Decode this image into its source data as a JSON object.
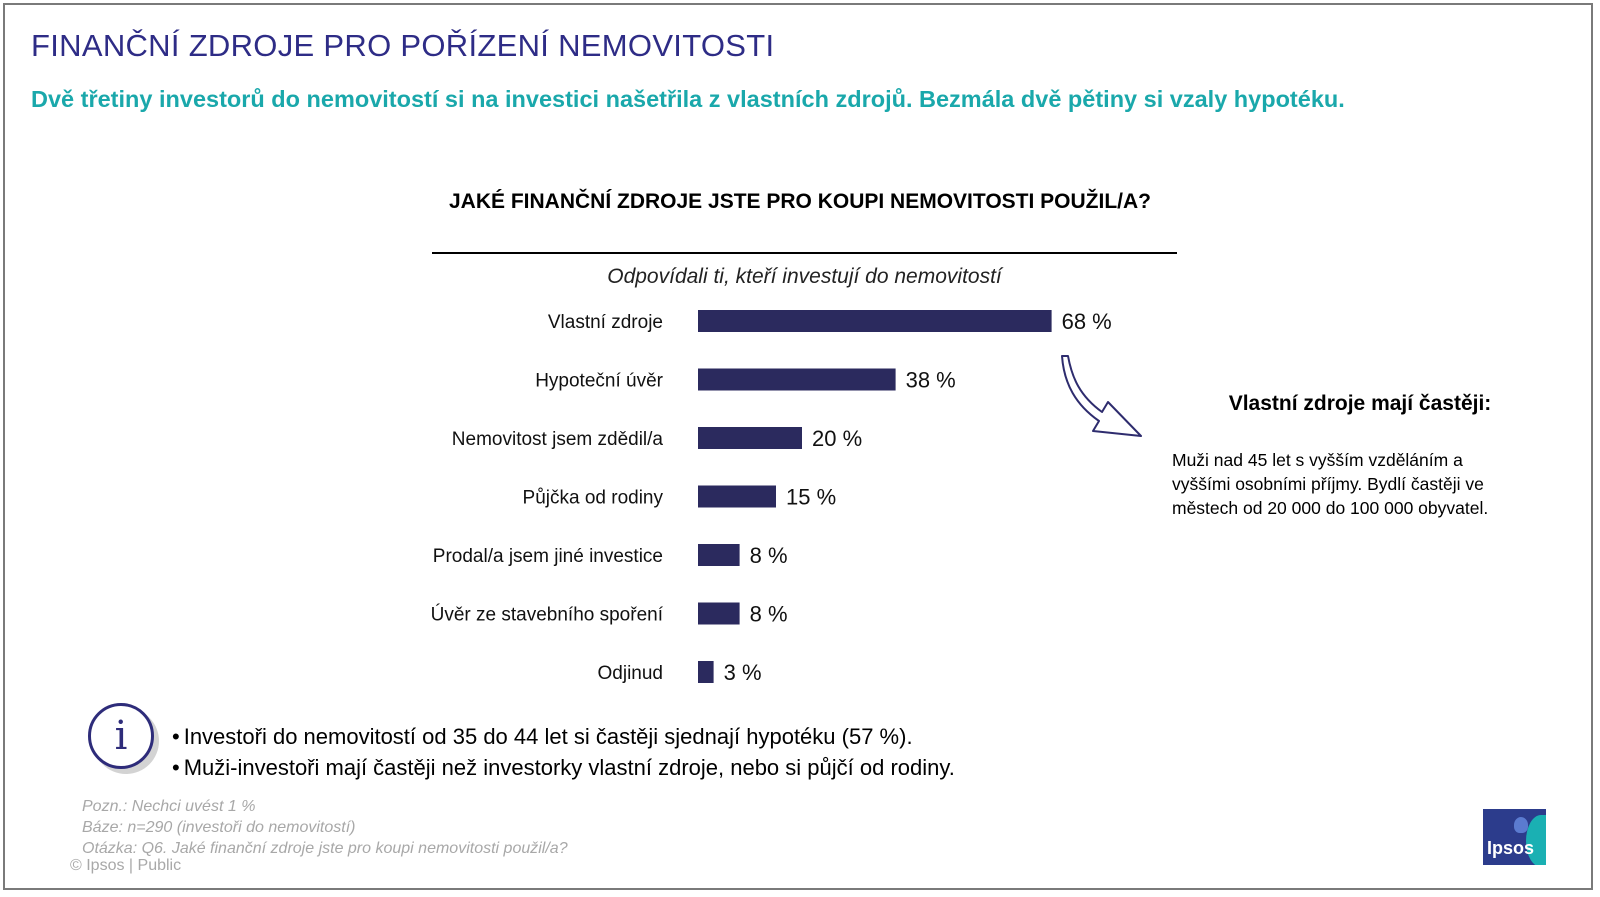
{
  "header": {
    "title": "FINANČNÍ ZDROJE PRO POŘÍZENÍ NEMOVITOSTI",
    "subtitle": "Dvě třetiny investorů do nemovitostí si na investici našetřila z vlastních zdrojů. Bezmála dvě pětiny si vzaly hypotéku."
  },
  "chart_data": {
    "type": "bar",
    "orientation": "horizontal",
    "title": "JAKÉ FINANČNÍ ZDROJE JSTE PRO KOUPI NEMOVITOSTI POUŽIL/A?",
    "subtitle": "Odpovídali ti, kteří investují do nemovitostí",
    "categories": [
      "Vlastní zdroje",
      "Hypoteční úvěr",
      "Nemovitost jsem zdědil/a",
      "Půjčka od rodiny",
      "Prodal/a jsem jiné investice",
      "Úvěr ze stavebního spoření",
      "Odjinud"
    ],
    "values": [
      68,
      38,
      20,
      15,
      8,
      8,
      3
    ],
    "value_labels": [
      "68 %",
      "38 %",
      "20 %",
      "15 %",
      "8 %",
      "8 %",
      "3 %"
    ],
    "unit": "%",
    "xlim": [
      0,
      100
    ],
    "grid": false,
    "bar_color": "#2b2a5e"
  },
  "side_note": {
    "heading": "Vlastní zdroje mají častěji:",
    "lines": [
      "Muži nad 45 let s vyšším vzděláním a",
      "vyššími osobními příjmy. Bydlí častěji ve",
      "městech od 20 000 do 100 000 obyvatel."
    ]
  },
  "info": {
    "icon": "info-icon",
    "bullet_char": "•",
    "bullets": [
      "Investoři do nemovitostí od 35 do 44 let si častěji sjednají hypotéku (57 %).",
      "Muži-investoři mají častěji než investorky vlastní zdroje, nebo si půjčí od rodiny."
    ]
  },
  "footnotes": {
    "note": "Pozn.: Nechci uvést 1 %",
    "base": "Báze: n=290 (investoři do nemovitostí)",
    "question": "Otázka: Q6. Jaké finanční zdroje jste pro koupi nemovitosti použil/a?",
    "copyright": "© Ipsos | Public"
  },
  "logo": {
    "text": "Ipsos"
  },
  "colors": {
    "title": "#2e2c86",
    "subtitle": "#1aa8ab",
    "bar": "#2b2a5e",
    "footnote": "#a8a8a8",
    "logo_blue": "#2c3c8c",
    "logo_teal": "#1ab0b3"
  }
}
